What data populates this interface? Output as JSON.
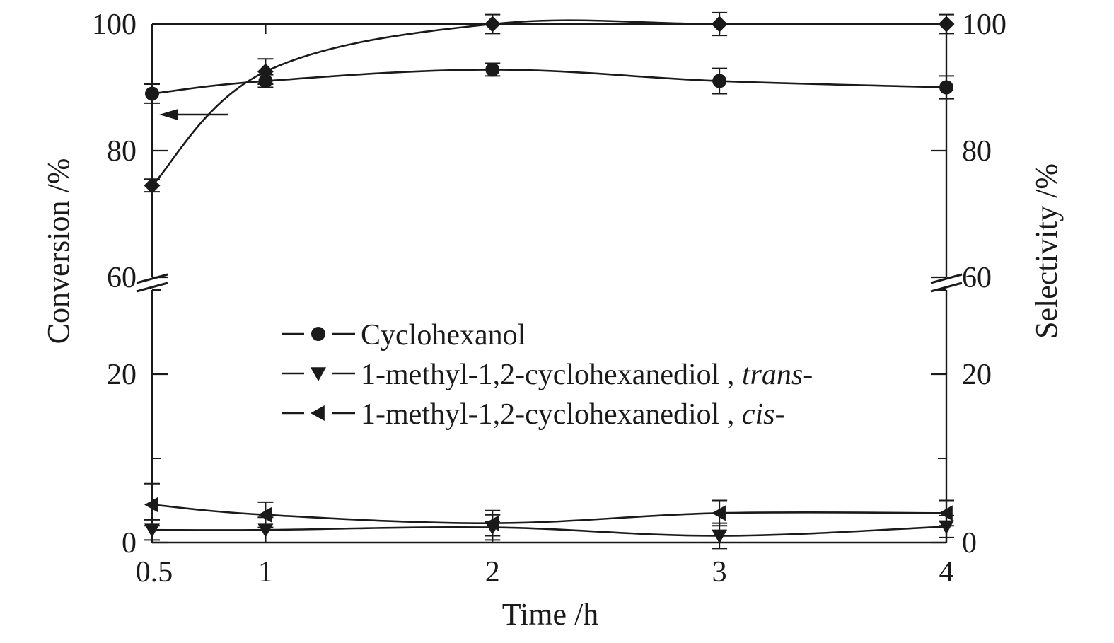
{
  "chart_data": {
    "type": "line",
    "xlabel": "Time /h",
    "ylabel_left": "Conversion /%",
    "ylabel_right": "Selectivity /%",
    "x_ticks": [
      "0.5",
      "1",
      "2",
      "3",
      "4"
    ],
    "xlim": [
      0.5,
      4
    ],
    "y_axis_break": {
      "lower_range": [
        0,
        30
      ],
      "upper_range": [
        60,
        100
      ]
    },
    "y_ticks_upper": [
      "100",
      "80",
      "60"
    ],
    "y_ticks_lower": [
      "20",
      "0"
    ],
    "y_ticks_right_upper": [
      "100",
      "80",
      "60"
    ],
    "y_ticks_right_lower": [
      "20",
      "0"
    ],
    "x": [
      0.5,
      1,
      2,
      3,
      4
    ],
    "conversion_series": {
      "marker": "diamond",
      "axis": "left",
      "values": [
        74.5,
        92.5,
        100,
        100,
        100
      ],
      "errors": [
        1,
        2,
        1.5,
        1.8,
        1.5
      ]
    },
    "series": [
      {
        "name": "Cyclohexanol",
        "marker": "circle",
        "axis": "right",
        "values": [
          89,
          91,
          92.8,
          91,
          90
        ],
        "errors": [
          1.5,
          1,
          1,
          2,
          1.8
        ]
      },
      {
        "name": "1-methyl-1,2-cyclohexanediol",
        "name_suffix": "trans",
        "marker": "triangle-down",
        "axis": "right",
        "values": [
          1.5,
          1.5,
          1.8,
          0.8,
          1.9
        ],
        "errors": [
          1.2,
          1.5,
          1.5,
          1.5,
          1.3
        ]
      },
      {
        "name": "1-methyl-1,2-cyclohexanediol",
        "name_suffix": "cis",
        "marker": "triangle-left",
        "axis": "right",
        "values": [
          4.5,
          3.3,
          2.3,
          3.5,
          3.5
        ],
        "errors": [
          2.5,
          1.5,
          1.5,
          1.5,
          1.5
        ]
      }
    ],
    "legend": {
      "placement": "center",
      "entries": [
        {
          "label": "Cyclohexanol",
          "marker": "circle"
        },
        {
          "label": "1-methyl-1,2-cyclohexanediol , ",
          "italic": "trans",
          "tail": "-",
          "marker": "triangle-down"
        },
        {
          "label": "1-methyl-1,2-cyclohexanediol , ",
          "italic": "cis",
          "tail": "-",
          "marker": "triangle-left"
        }
      ]
    },
    "annotation": {
      "arrow_direction": "left",
      "points_to_axis": "left"
    },
    "grid": false,
    "colors": {
      "line": "#1a1a1a",
      "marker": "#1a1a1a",
      "background": "#ffffff"
    }
  }
}
